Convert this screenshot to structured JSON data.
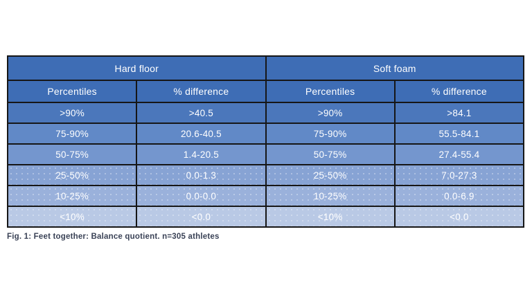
{
  "table": {
    "sections": [
      {
        "title": "Hard floor",
        "columns": [
          "Percentiles",
          "% difference"
        ]
      },
      {
        "title": "Soft foam",
        "columns": [
          "Percentiles",
          "% difference"
        ]
      }
    ],
    "rows": [
      {
        "cells": [
          ">90%",
          ">40.5",
          ">90%",
          ">84.1"
        ]
      },
      {
        "cells": [
          "75-90%",
          "20.6-40.5",
          "75-90%",
          "55.5-84.1"
        ]
      },
      {
        "cells": [
          "50-75%",
          "1.4-20.5",
          "50-75%",
          "27.4-55.4"
        ]
      },
      {
        "cells": [
          "25-50%",
          "0.0-1.3",
          "25-50%",
          "7.0-27.3"
        ]
      },
      {
        "cells": [
          "10-25%",
          "0.0-0.0",
          "10-25%",
          "0.0-6.9"
        ]
      },
      {
        "cells": [
          "<10%",
          "<0.0",
          "<10%",
          "<0.0"
        ]
      }
    ]
  },
  "caption": "Fig. 1: Feet together: Balance quotient. n=305 athletes",
  "colors": {
    "header": "#3e6db5",
    "row_colors": [
      "#4b77bb",
      "#6189c7",
      "#7496ce",
      "#87a3d4",
      "#9ab1db",
      "#b9c9e5"
    ],
    "grid_border": "#161616",
    "cell_text": "#ffffff",
    "caption_text": "#3a4256"
  },
  "chart_data": {
    "type": "table",
    "title": "Fig. 1: Feet together: Balance quotient. n=305 athletes",
    "n_athletes": 305,
    "sections": [
      {
        "name": "Hard floor",
        "columns": [
          "Percentiles",
          "% difference"
        ],
        "rows": [
          [
            ">90%",
            ">40.5"
          ],
          [
            "75-90%",
            "20.6-40.5"
          ],
          [
            "50-75%",
            "1.4-20.5"
          ],
          [
            "25-50%",
            "0.0-1.3"
          ],
          [
            "10-25%",
            "0.0-0.0"
          ],
          [
            "<10%",
            "<0.0"
          ]
        ]
      },
      {
        "name": "Soft foam",
        "columns": [
          "Percentiles",
          "% difference"
        ],
        "rows": [
          [
            ">90%",
            ">84.1"
          ],
          [
            "75-90%",
            "55.5-84.1"
          ],
          [
            "50-75%",
            "27.4-55.4"
          ],
          [
            "25-50%",
            "7.0-27.3"
          ],
          [
            "10-25%",
            "0.0-6.9"
          ],
          [
            "<10%",
            "<0.0"
          ]
        ]
      }
    ],
    "layout_hints": {
      "row_shading": "vertical blue gradient, darkest at top row, lightest at bottom row",
      "grid": "on, black lines",
      "text_color": "white"
    }
  }
}
